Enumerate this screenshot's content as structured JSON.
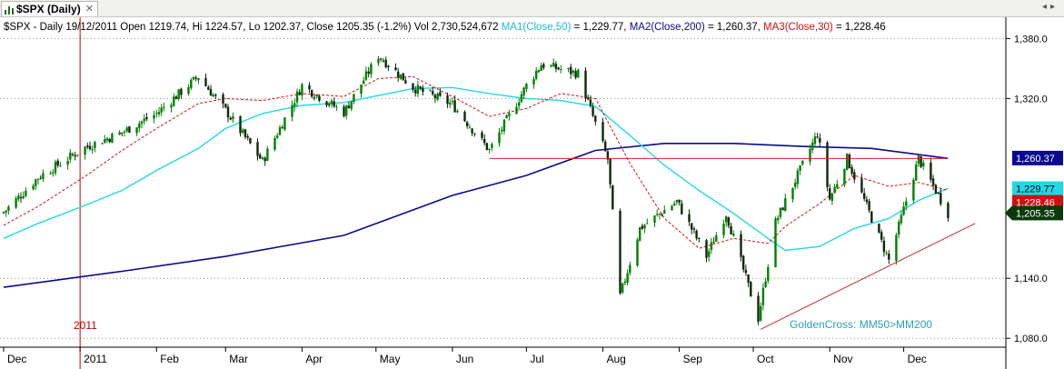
{
  "tab": {
    "title": "$SPX (Daily)",
    "close_glyph": "✕",
    "nav_prev": "◂",
    "nav_next": "▸"
  },
  "info": {
    "prefix": "$SPX - Daily 19/12/2011 Open 1219.74, Hi 1224.57, Lo 1202.37, Close 1205.35 (-1.2%) Vol 2,730,524,672 ",
    "ma1_label": "MA1(Close,50)",
    "ma1_value": " = 1,229.77, ",
    "ma2_label": "MA2(Close,200)",
    "ma2_value": " = 1,260.37, ",
    "ma3_label": "MA3(Close,30)",
    "ma3_value": " = 1,228.46"
  },
  "annotations": {
    "year_marker": "2011",
    "golden_cross": "GoldenCross: MM50>MM200"
  },
  "colors": {
    "up": "#008000",
    "down": "#0a2a0a",
    "ma1": "#20d8e8",
    "ma2": "#0a0a90",
    "ma3": "#d01010",
    "resistance": "#e02020",
    "trendline": "#c03030",
    "year_line": "#c00000",
    "grid": "#909090"
  },
  "chart_data": {
    "type": "line",
    "title": "$SPX (Daily)",
    "x_axis_labels": [
      "Dec",
      "2011",
      "Feb",
      "Mar",
      "Apr",
      "May",
      "Jun",
      "Jul",
      "Aug",
      "Sep",
      "Oct",
      "Nov",
      "Dec"
    ],
    "y_ticks": [
      "1,380.0",
      "1,320.0",
      "1,140.0",
      "1,080.0"
    ],
    "ylim": [
      1072,
      1394
    ],
    "grid": true,
    "series": [
      {
        "name": "$SPX (Daily)",
        "x": [
          "2010-12-01",
          "2010-12-15",
          "2011-01-03",
          "2011-01-18",
          "2011-02-01",
          "2011-02-18",
          "2011-03-01",
          "2011-03-16",
          "2011-04-01",
          "2011-04-18",
          "2011-05-02",
          "2011-05-16",
          "2011-06-01",
          "2011-06-16",
          "2011-07-01",
          "2011-07-07",
          "2011-07-22",
          "2011-08-03",
          "2011-08-08",
          "2011-08-16",
          "2011-08-31",
          "2011-09-12",
          "2011-09-20",
          "2011-10-03",
          "2011-10-10",
          "2011-10-27",
          "2011-11-01",
          "2011-11-08",
          "2011-11-25",
          "2011-12-07",
          "2011-12-19"
        ],
        "y": [
          1206,
          1241,
          1271,
          1286,
          1305,
          1342,
          1308,
          1257,
          1333,
          1306,
          1363,
          1331,
          1314,
          1268,
          1333,
          1354,
          1345,
          1259,
          1122,
          1190,
          1217,
          1162,
          1205,
          1100,
          1196,
          1285,
          1219,
          1260,
          1158,
          1260,
          1205
        ]
      },
      {
        "name": "MA1(Close,50)",
        "x": [
          "2010-12-01",
          "2010-12-15",
          "2011-01-03",
          "2011-01-18",
          "2011-02-01",
          "2011-02-18",
          "2011-03-01",
          "2011-03-16",
          "2011-04-01",
          "2011-04-18",
          "2011-05-02",
          "2011-05-16",
          "2011-06-01",
          "2011-06-16",
          "2011-07-01",
          "2011-07-15",
          "2011-07-29",
          "2011-08-12",
          "2011-08-26",
          "2011-09-09",
          "2011-09-23",
          "2011-10-07",
          "2011-10-14",
          "2011-10-28",
          "2011-11-11",
          "2011-11-25",
          "2011-12-07",
          "2011-12-19"
        ],
        "y": [
          1180,
          1195,
          1213,
          1228,
          1248,
          1270,
          1290,
          1305,
          1313,
          1316,
          1323,
          1330,
          1331,
          1325,
          1320,
          1318,
          1312,
          1283,
          1253,
          1228,
          1205,
          1180,
          1168,
          1172,
          1190,
          1200,
          1218,
          1230
        ]
      },
      {
        "name": "MA2(Close,200)",
        "x": [
          "2010-12-01",
          "2011-01-18",
          "2011-03-01",
          "2011-04-18",
          "2011-06-01",
          "2011-07-01",
          "2011-07-29",
          "2011-08-26",
          "2011-09-23",
          "2011-10-21",
          "2011-11-18",
          "2011-12-19"
        ],
        "y": [
          1131,
          1147,
          1162,
          1183,
          1223,
          1243,
          1268,
          1275,
          1275,
          1272,
          1270,
          1260
        ]
      },
      {
        "name": "MA3(Close,30)",
        "x": [
          "2010-12-01",
          "2010-12-15",
          "2011-01-03",
          "2011-01-18",
          "2011-02-01",
          "2011-02-18",
          "2011-03-01",
          "2011-03-16",
          "2011-04-01",
          "2011-04-18",
          "2011-05-02",
          "2011-05-16",
          "2011-06-01",
          "2011-06-16",
          "2011-07-01",
          "2011-07-15",
          "2011-07-29",
          "2011-08-12",
          "2011-08-26",
          "2011-09-09",
          "2011-09-23",
          "2011-10-07",
          "2011-10-14",
          "2011-10-28",
          "2011-11-11",
          "2011-11-25",
          "2011-12-07",
          "2011-12-19"
        ],
        "y": [
          1193,
          1212,
          1242,
          1268,
          1290,
          1315,
          1320,
          1318,
          1325,
          1322,
          1340,
          1342,
          1322,
          1302,
          1310,
          1325,
          1320,
          1255,
          1200,
          1170,
          1180,
          1175,
          1192,
          1215,
          1243,
          1232,
          1236,
          1228
        ]
      }
    ],
    "price_labels": [
      {
        "label": "1,260.37",
        "value": 1260.37
      },
      {
        "label": "1,229.77",
        "value": 1229.77
      },
      {
        "label": "1,228.46",
        "value": 1228.46
      },
      {
        "label": "1,205.35",
        "value": 1205.35
      }
    ],
    "lines": [
      {
        "name": "resistance",
        "x": [
          "2011-06-16",
          "2011-12-19"
        ],
        "y": [
          1260,
          1260
        ]
      },
      {
        "name": "trendline",
        "x": [
          "2011-10-04",
          "2011-12-30"
        ],
        "y": [
          1089,
          1195
        ]
      }
    ]
  }
}
